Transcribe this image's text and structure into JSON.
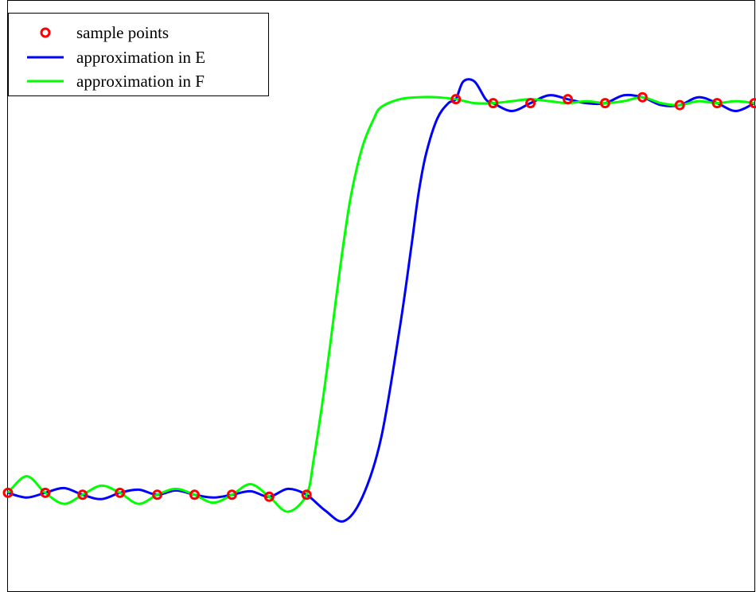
{
  "chart_data": {
    "type": "line",
    "title": "",
    "xlabel": "",
    "ylabel": "",
    "xlim": [
      0,
      20
    ],
    "ylim": [
      -0.25,
      1.25
    ],
    "grid": false,
    "axes_ticks": false,
    "legend": {
      "placement": "top-left",
      "entries": [
        {
          "label": "sample points",
          "marker": "circle",
          "color": "#ff0000"
        },
        {
          "label": "approximation in E",
          "marker": "line",
          "color": "#0000ff"
        },
        {
          "label": "approximation in F",
          "marker": "line",
          "color": "#00ff00"
        }
      ]
    },
    "series": [
      {
        "name": "sample points",
        "kind": "markers",
        "color": "#ff0000",
        "x": [
          0,
          1,
          2,
          3,
          4,
          5,
          6,
          7,
          8,
          12,
          13,
          14,
          15,
          16,
          17,
          18,
          19,
          20
        ],
        "y": [
          0.0,
          0.0,
          -0.005,
          0.0,
          -0.005,
          -0.005,
          -0.005,
          -0.01,
          -0.005,
          1.0,
          0.99,
          0.99,
          1.0,
          0.99,
          1.005,
          0.985,
          0.99,
          0.99
        ]
      },
      {
        "name": "approximation in E",
        "kind": "line",
        "color": "#0000ff",
        "x": [
          0,
          0.5,
          1,
          1.5,
          2,
          2.5,
          3,
          3.5,
          4,
          4.5,
          5,
          5.5,
          6,
          6.5,
          7,
          7.5,
          8,
          8.5,
          9,
          9.5,
          10,
          10.5,
          10.8,
          11,
          11.2,
          11.5,
          11.8,
          12,
          12.2,
          12.5,
          12.8,
          13,
          13.5,
          14,
          14.5,
          15,
          15.5,
          16,
          16.5,
          17,
          17.5,
          18,
          18.5,
          19,
          19.5,
          20
        ],
        "y": [
          0.0,
          -0.012,
          0.0,
          0.012,
          -0.005,
          -0.016,
          0.0,
          0.008,
          -0.005,
          0.006,
          -0.005,
          -0.012,
          -0.005,
          0.004,
          -0.01,
          0.01,
          -0.005,
          -0.045,
          -0.072,
          -0.01,
          0.14,
          0.42,
          0.62,
          0.76,
          0.86,
          0.95,
          0.99,
          1.0,
          1.045,
          1.045,
          1.0,
          0.99,
          0.97,
          0.99,
          1.01,
          1.0,
          0.99,
          0.99,
          1.01,
          1.005,
          0.985,
          0.985,
          1.005,
          0.99,
          0.97,
          0.99
        ]
      },
      {
        "name": "approximation in F",
        "kind": "line",
        "color": "#00ff00",
        "x": [
          0,
          0.5,
          1,
          1.5,
          2,
          2.5,
          3,
          3.5,
          4,
          4.5,
          5,
          5.5,
          6,
          6.5,
          7,
          7.5,
          8,
          8.2,
          8.5,
          8.8,
          9,
          9.2,
          9.5,
          9.8,
          10,
          10.5,
          11,
          11.5,
          12,
          12.5,
          13,
          13.5,
          14,
          14.5,
          15,
          15.5,
          16,
          16.5,
          17,
          17.5,
          18,
          18.5,
          19,
          19.5,
          20
        ],
        "y": [
          0.0,
          0.042,
          0.0,
          -0.028,
          -0.005,
          0.018,
          0.0,
          -0.028,
          -0.005,
          0.01,
          -0.005,
          -0.025,
          -0.005,
          0.022,
          -0.01,
          -0.048,
          -0.005,
          0.09,
          0.28,
          0.5,
          0.64,
          0.76,
          0.88,
          0.95,
          0.98,
          1.0,
          1.005,
          1.005,
          1.0,
          0.99,
          0.99,
          0.995,
          1.0,
          0.995,
          0.99,
          0.995,
          0.99,
          0.995,
          1.005,
          0.99,
          0.985,
          0.995,
          0.99,
          0.995,
          0.99
        ]
      }
    ]
  }
}
